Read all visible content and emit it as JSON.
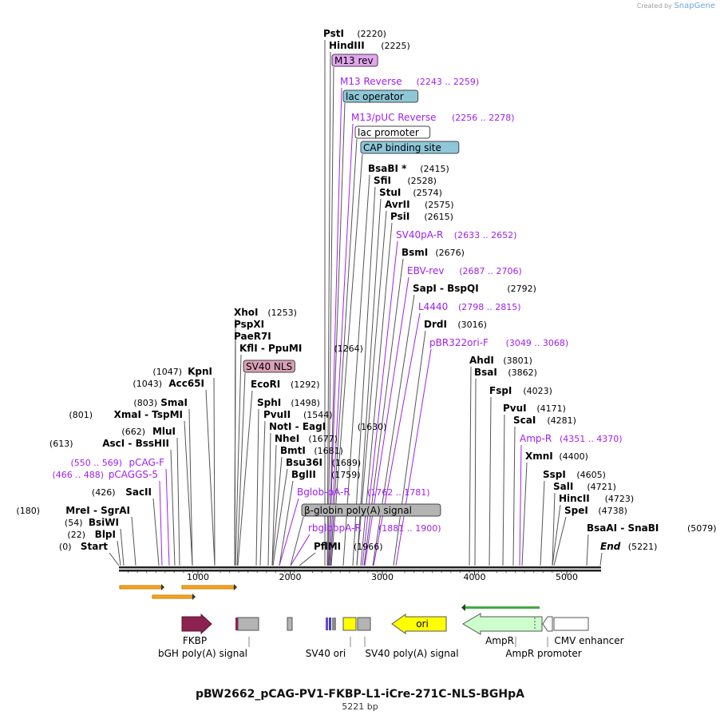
{
  "header": {
    "credit": "Created by",
    "brand": "SnapGene"
  },
  "title": "pBW2662_pCAG-PV1-FKBP-L1-iCre-271C-NLS-BGHpA",
  "subtitle": "5221 bp",
  "ruler": {
    "ticks": [
      "1000",
      "2000",
      "3000",
      "4000",
      "5000"
    ]
  },
  "labels": [
    {
      "name": "PstI",
      "pos": "(2220)",
      "kind": "enzyme"
    },
    {
      "name": "HindIII",
      "pos": "(2225)",
      "kind": "enzyme"
    },
    {
      "name": "M13 rev",
      "pos": "",
      "kind": "box",
      "color": "#e2a6ee"
    },
    {
      "name": "M13 Reverse",
      "pos": "(2243 .. 2259)",
      "kind": "primer"
    },
    {
      "name": "lac operator",
      "pos": "",
      "kind": "box",
      "color": "#8ec7d8"
    },
    {
      "name": "M13/pUC Reverse",
      "pos": "(2256 .. 2278)",
      "kind": "primer"
    },
    {
      "name": "lac promoter",
      "pos": "",
      "kind": "box",
      "color": "#ffffff"
    },
    {
      "name": "CAP binding site",
      "pos": "",
      "kind": "box",
      "color": "#8ec7d8"
    },
    {
      "name": "BsaBI *",
      "pos": "(2415)",
      "kind": "enzyme"
    },
    {
      "name": "SfiI",
      "pos": "(2528)",
      "kind": "enzyme"
    },
    {
      "name": "StuI",
      "pos": "(2574)",
      "kind": "enzyme"
    },
    {
      "name": "AvrII",
      "pos": "(2575)",
      "kind": "enzyme"
    },
    {
      "name": "PsiI",
      "pos": "(2615)",
      "kind": "enzyme"
    },
    {
      "name": "SV40pA-R",
      "pos": "(2633 .. 2652)",
      "kind": "primer"
    },
    {
      "name": "BsmI",
      "pos": "(2676)",
      "kind": "enzyme"
    },
    {
      "name": "EBV-rev",
      "pos": "(2687 .. 2706)",
      "kind": "primer"
    },
    {
      "name": "SapI  -  BspQI",
      "pos": "(2792)",
      "kind": "enzyme"
    },
    {
      "name": "L4440",
      "pos": "(2798 .. 2815)",
      "kind": "primer"
    },
    {
      "name": "DrdI",
      "pos": "(3016)",
      "kind": "enzyme"
    },
    {
      "name": "pBR322ori-F",
      "pos": "(3049 .. 3068)",
      "kind": "primer"
    },
    {
      "name": "XhoI",
      "pos": "(1253)",
      "kind": "enzyme"
    },
    {
      "name": "PspXI",
      "pos": "",
      "kind": "enzyme"
    },
    {
      "name": "PaeR7I",
      "pos": "",
      "kind": "enzyme"
    },
    {
      "name": "KflI  -  PpuMI",
      "pos": "(1264)",
      "kind": "enzyme"
    },
    {
      "name": "SV40 NLS",
      "pos": "",
      "kind": "box",
      "color": "#d9a0b6"
    },
    {
      "name": "EcoRI",
      "pos": "(1292)",
      "kind": "enzyme"
    },
    {
      "name": "SphI",
      "pos": "(1498)",
      "kind": "enzyme"
    },
    {
      "name": "PvuII",
      "pos": "(1544)",
      "kind": "enzyme"
    },
    {
      "name": "NotI  -  EagI",
      "pos": "(1630)",
      "kind": "enzyme"
    },
    {
      "name": "NheI",
      "pos": "(1677)",
      "kind": "enzyme"
    },
    {
      "name": "BmtI",
      "pos": "(1681)",
      "kind": "enzyme"
    },
    {
      "name": "Bsu36I",
      "pos": "(1689)",
      "kind": "enzyme"
    },
    {
      "name": "BglII",
      "pos": "(1759)",
      "kind": "enzyme"
    },
    {
      "name": "Bglob-pA-R",
      "pos": "(1762 .. 1781)",
      "kind": "primer"
    },
    {
      "name": "β-globin poly(A) signal",
      "pos": "",
      "kind": "box",
      "color": "#b4b4b4"
    },
    {
      "name": "rbglobpA-R",
      "pos": "(1881 .. 1900)",
      "kind": "primer"
    },
    {
      "name": "PflMI",
      "pos": "(1966)",
      "kind": "enzyme"
    },
    {
      "name": "KpnI",
      "pos": "(1047)",
      "kind": "enzyme"
    },
    {
      "name": "Acc65I",
      "pos": "(1043)",
      "kind": "enzyme"
    },
    {
      "name": "SmaI",
      "pos": "(803)",
      "kind": "enzyme"
    },
    {
      "name": "XmaI  -  TspMI",
      "pos": "(801)",
      "kind": "enzyme"
    },
    {
      "name": "MluI",
      "pos": "(662)",
      "kind": "enzyme"
    },
    {
      "name": "AscI  -  BssHII",
      "pos": "(613)",
      "kind": "enzyme"
    },
    {
      "name": "pCAG-F",
      "pos": "(550 .. 569)",
      "kind": "primer"
    },
    {
      "name": "pCAGGS-5",
      "pos": "(466 .. 488)",
      "kind": "primer"
    },
    {
      "name": "SacII",
      "pos": "(426)",
      "kind": "enzyme"
    },
    {
      "name": "MreI  -  SgrAI",
      "pos": "(180)",
      "kind": "enzyme"
    },
    {
      "name": "BsiWI",
      "pos": "(54)",
      "kind": "enzyme"
    },
    {
      "name": "BlpI",
      "pos": "(22)",
      "kind": "enzyme"
    },
    {
      "name": "Start",
      "pos": "(0)",
      "kind": "end"
    },
    {
      "name": "AhdI",
      "pos": "(3801)",
      "kind": "enzyme"
    },
    {
      "name": "BsaI",
      "pos": "(3862)",
      "kind": "enzyme"
    },
    {
      "name": "FspI",
      "pos": "(4023)",
      "kind": "enzyme"
    },
    {
      "name": "PvuI",
      "pos": "(4171)",
      "kind": "enzyme"
    },
    {
      "name": "ScaI",
      "pos": "(4281)",
      "kind": "enzyme"
    },
    {
      "name": "Amp-R",
      "pos": "(4351 .. 4370)",
      "kind": "primer"
    },
    {
      "name": "XmnI",
      "pos": "(4400)",
      "kind": "enzyme"
    },
    {
      "name": "SspI",
      "pos": "(4605)",
      "kind": "enzyme"
    },
    {
      "name": "SalI",
      "pos": "(4721)",
      "kind": "enzyme"
    },
    {
      "name": "HincII",
      "pos": "(4723)",
      "kind": "enzyme"
    },
    {
      "name": "SpeI",
      "pos": "(4738)",
      "kind": "enzyme"
    },
    {
      "name": "BsaAI  -  SnaBI",
      "pos": "(5079)",
      "kind": "enzyme"
    },
    {
      "name": "End",
      "pos": "(5221)",
      "kind": "end"
    }
  ],
  "features": [
    {
      "name": "FKBP",
      "color": "#8b2252"
    },
    {
      "name": "bGH poly(A) signal",
      "color": "#b4b4b4"
    },
    {
      "name": "SV40 ori",
      "color": "#b4b4b4"
    },
    {
      "name": "SV40 poly(A) signal",
      "color": "#b4b4b4"
    },
    {
      "name": "ori",
      "color": "#ffff00"
    },
    {
      "name": "AmpR",
      "color": "#ccffcc"
    },
    {
      "name": "AmpR promoter",
      "color": "#ffffff"
    },
    {
      "name": "CMV enhancer",
      "color": "#ffffff"
    }
  ],
  "colors": {
    "primer": "#a020f0",
    "enzyme": "#000000",
    "backbone": "#222222",
    "orf": "#f5a623"
  }
}
